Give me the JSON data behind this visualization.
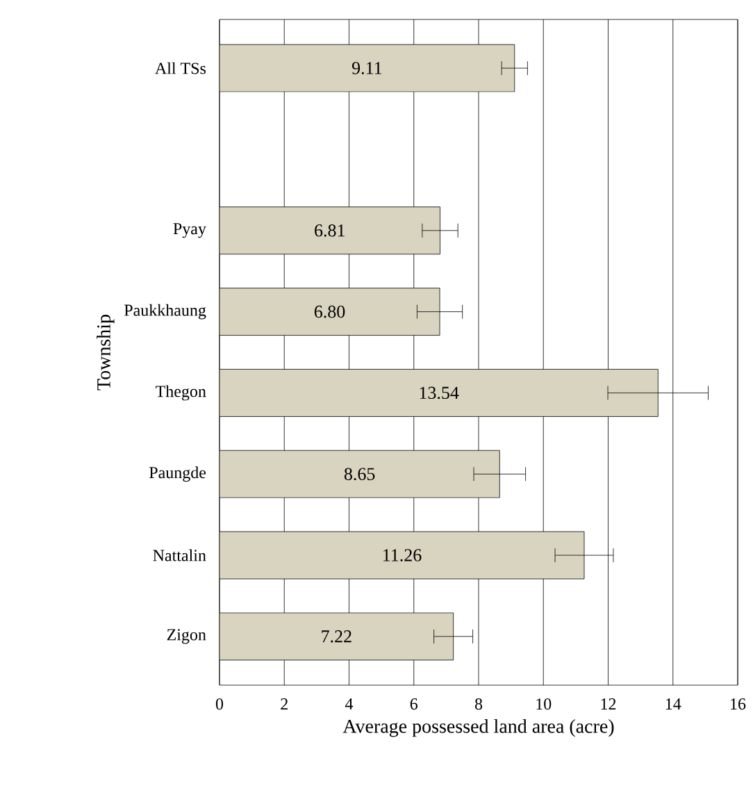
{
  "chart_data": {
    "type": "bar",
    "orientation": "horizontal",
    "xlabel": "Average possessed land area (acre)",
    "ylabel": "Township",
    "categories": [
      "All TSs",
      null,
      "Pyay",
      "Paukkhaung",
      "Thegon",
      "Paungde",
      "Nattalin",
      "Zigon"
    ],
    "values": [
      9.11,
      null,
      6.81,
      6.8,
      13.54,
      8.65,
      11.26,
      7.22
    ],
    "errors": [
      0.4,
      null,
      0.55,
      0.7,
      1.55,
      0.8,
      0.9,
      0.6
    ],
    "value_labels": [
      "9.11",
      null,
      "6.81",
      "6.80",
      "13.54",
      "8.65",
      "11.26",
      "7.22"
    ],
    "color": "#d9d4c0",
    "grid": "x",
    "xlim": [
      0,
      16
    ],
    "xticks": [
      0,
      2,
      4,
      6,
      8,
      10,
      12,
      14,
      16
    ]
  }
}
